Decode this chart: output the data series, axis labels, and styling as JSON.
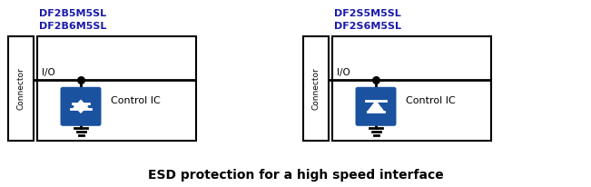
{
  "title": "ESD protection for a high speed interface",
  "title_fontsize": 10,
  "title_bold": true,
  "bg_color": "#ffffff",
  "circuit1": {
    "label_lines": [
      "DF2B5M5SL",
      "DF2B6M5SL"
    ],
    "connector_label": "Connector",
    "ic_label": "Control IC",
    "io_label": "I/O",
    "label_color": "#1a1aaa"
  },
  "circuit2": {
    "label_lines": [
      "DF2S5M5SL",
      "DF2S6M5SL"
    ],
    "connector_label": "Connector",
    "ic_label": "Control IC",
    "io_label": "I/O",
    "label_color": "#1a1aaa"
  },
  "diode_fill": "#1a52a0",
  "diode_stroke": "#ffffff",
  "line_color": "#000000",
  "box_color": "#000000",
  "lw": 1.5
}
